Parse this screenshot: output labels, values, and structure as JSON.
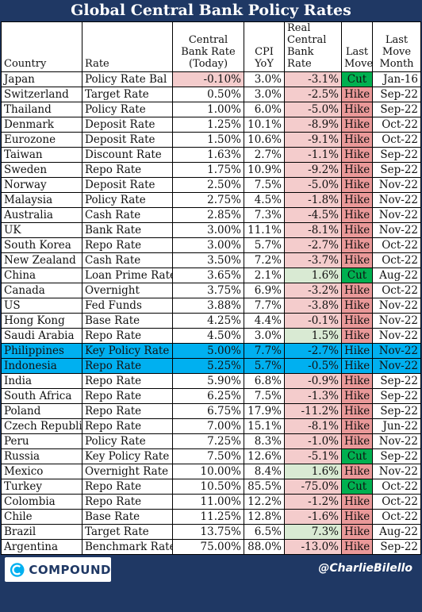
{
  "title": "Global Central Bank Policy Rates",
  "headers": {
    "country": "Country",
    "rate": "Rate",
    "cb_rate": "Central Bank Rate (Today)",
    "cpi": "CPI YoY",
    "real": "Real Central Bank Rate",
    "move": "Last Move",
    "month": "Last Move Month"
  },
  "colors": {
    "header_bg": "#1f3864",
    "negative_rate": "#f4cccc",
    "positive_real": "#d9ead3",
    "hike": "#ea9999",
    "cut": "#00b050",
    "highlight_row": "#00b0f0"
  },
  "chart_data": {
    "type": "table",
    "columns": [
      "Country",
      "Rate",
      "Central Bank Rate (Today)",
      "CPI YoY",
      "Real Central Bank Rate",
      "Last Move",
      "Last Move Month"
    ],
    "rows": [
      {
        "country": "Japan",
        "rate": "Policy Rate Bal",
        "cb": "-0.10%",
        "cpi": "3.0%",
        "real": "-3.1%",
        "move": "Cut",
        "month": "Jan-16"
      },
      {
        "country": "Switzerland",
        "rate": "Target Rate",
        "cb": "0.50%",
        "cpi": "3.0%",
        "real": "-2.5%",
        "move": "Hike",
        "month": "Sep-22"
      },
      {
        "country": "Thailand",
        "rate": "Policy Rate",
        "cb": "1.00%",
        "cpi": "6.0%",
        "real": "-5.0%",
        "move": "Hike",
        "month": "Sep-22"
      },
      {
        "country": "Denmark",
        "rate": "Deposit Rate",
        "cb": "1.25%",
        "cpi": "10.1%",
        "real": "-8.9%",
        "move": "Hike",
        "month": "Oct-22"
      },
      {
        "country": "Eurozone",
        "rate": "Deposit Rate",
        "cb": "1.50%",
        "cpi": "10.6%",
        "real": "-9.1%",
        "move": "Hike",
        "month": "Oct-22"
      },
      {
        "country": "Taiwan",
        "rate": "Discount Rate",
        "cb": "1.63%",
        "cpi": "2.7%",
        "real": "-1.1%",
        "move": "Hike",
        "month": "Sep-22"
      },
      {
        "country": "Sweden",
        "rate": "Repo Rate",
        "cb": "1.75%",
        "cpi": "10.9%",
        "real": "-9.2%",
        "move": "Hike",
        "month": "Sep-22"
      },
      {
        "country": "Norway",
        "rate": "Deposit Rate",
        "cb": "2.50%",
        "cpi": "7.5%",
        "real": "-5.0%",
        "move": "Hike",
        "month": "Nov-22"
      },
      {
        "country": "Malaysia",
        "rate": "Policy Rate",
        "cb": "2.75%",
        "cpi": "4.5%",
        "real": "-1.8%",
        "move": "Hike",
        "month": "Nov-22"
      },
      {
        "country": "Australia",
        "rate": "Cash Rate",
        "cb": "2.85%",
        "cpi": "7.3%",
        "real": "-4.5%",
        "move": "Hike",
        "month": "Nov-22"
      },
      {
        "country": "UK",
        "rate": "Bank Rate",
        "cb": "3.00%",
        "cpi": "11.1%",
        "real": "-8.1%",
        "move": "Hike",
        "month": "Nov-22"
      },
      {
        "country": "South Korea",
        "rate": "Repo Rate",
        "cb": "3.00%",
        "cpi": "5.7%",
        "real": "-2.7%",
        "move": "Hike",
        "month": "Oct-22"
      },
      {
        "country": "New Zealand",
        "rate": "Cash Rate",
        "cb": "3.50%",
        "cpi": "7.2%",
        "real": "-3.7%",
        "move": "Hike",
        "month": "Oct-22"
      },
      {
        "country": "China",
        "rate": "Loan Prime Rate",
        "cb": "3.65%",
        "cpi": "2.1%",
        "real": "1.6%",
        "move": "Cut",
        "month": "Aug-22"
      },
      {
        "country": "Canada",
        "rate": "Overnight",
        "cb": "3.75%",
        "cpi": "6.9%",
        "real": "-3.2%",
        "move": "Hike",
        "month": "Oct-22"
      },
      {
        "country": "US",
        "rate": "Fed Funds",
        "cb": "3.88%",
        "cpi": "7.7%",
        "real": "-3.8%",
        "move": "Hike",
        "month": "Nov-22"
      },
      {
        "country": "Hong Kong",
        "rate": "Base Rate",
        "cb": "4.25%",
        "cpi": "4.4%",
        "real": "-0.1%",
        "move": "Hike",
        "month": "Nov-22"
      },
      {
        "country": "Saudi Arabia",
        "rate": "Repo Rate",
        "cb": "4.50%",
        "cpi": "3.0%",
        "real": "1.5%",
        "move": "Hike",
        "month": "Nov-22"
      },
      {
        "country": "Philippines",
        "rate": "Key Policy Rate",
        "cb": "5.00%",
        "cpi": "7.7%",
        "real": "-2.7%",
        "move": "Hike",
        "month": "Nov-22",
        "highlight": true
      },
      {
        "country": "Indonesia",
        "rate": "Repo Rate",
        "cb": "5.25%",
        "cpi": "5.7%",
        "real": "-0.5%",
        "move": "Hike",
        "month": "Nov-22",
        "highlight": true
      },
      {
        "country": "India",
        "rate": "Repo Rate",
        "cb": "5.90%",
        "cpi": "6.8%",
        "real": "-0.9%",
        "move": "Hike",
        "month": "Sep-22"
      },
      {
        "country": "South Africa",
        "rate": "Repo Rate",
        "cb": "6.25%",
        "cpi": "7.5%",
        "real": "-1.3%",
        "move": "Hike",
        "month": "Sep-22"
      },
      {
        "country": "Poland",
        "rate": "Repo Rate",
        "cb": "6.75%",
        "cpi": "17.9%",
        "real": "-11.2%",
        "move": "Hike",
        "month": "Sep-22"
      },
      {
        "country": "Czech Republic",
        "rate": "Repo Rate",
        "cb": "7.00%",
        "cpi": "15.1%",
        "real": "-8.1%",
        "move": "Hike",
        "month": "Jun-22"
      },
      {
        "country": "Peru",
        "rate": "Policy Rate",
        "cb": "7.25%",
        "cpi": "8.3%",
        "real": "-1.0%",
        "move": "Hike",
        "month": "Nov-22"
      },
      {
        "country": "Russia",
        "rate": "Key Policy Rate",
        "cb": "7.50%",
        "cpi": "12.6%",
        "real": "-5.1%",
        "move": "Cut",
        "month": "Sep-22"
      },
      {
        "country": "Mexico",
        "rate": "Overnight Rate",
        "cb": "10.00%",
        "cpi": "8.4%",
        "real": "1.6%",
        "move": "Hike",
        "month": "Nov-22"
      },
      {
        "country": "Turkey",
        "rate": "Repo Rate",
        "cb": "10.50%",
        "cpi": "85.5%",
        "real": "-75.0%",
        "move": "Cut",
        "month": "Oct-22"
      },
      {
        "country": "Colombia",
        "rate": "Repo Rate",
        "cb": "11.00%",
        "cpi": "12.2%",
        "real": "-1.2%",
        "move": "Hike",
        "month": "Oct-22"
      },
      {
        "country": "Chile",
        "rate": "Base Rate",
        "cb": "11.25%",
        "cpi": "12.8%",
        "real": "-1.6%",
        "move": "Hike",
        "month": "Oct-22"
      },
      {
        "country": "Brazil",
        "rate": "Target Rate",
        "cb": "13.75%",
        "cpi": "6.5%",
        "real": "7.3%",
        "move": "Hike",
        "month": "Aug-22"
      },
      {
        "country": "Argentina",
        "rate": "Benchmark Rate",
        "cb": "75.00%",
        "cpi": "88.0%",
        "real": "-13.0%",
        "move": "Hike",
        "month": "Sep-22"
      }
    ]
  },
  "footer": {
    "logo_text": "COMPOUND",
    "handle": "@CharlieBilello"
  }
}
